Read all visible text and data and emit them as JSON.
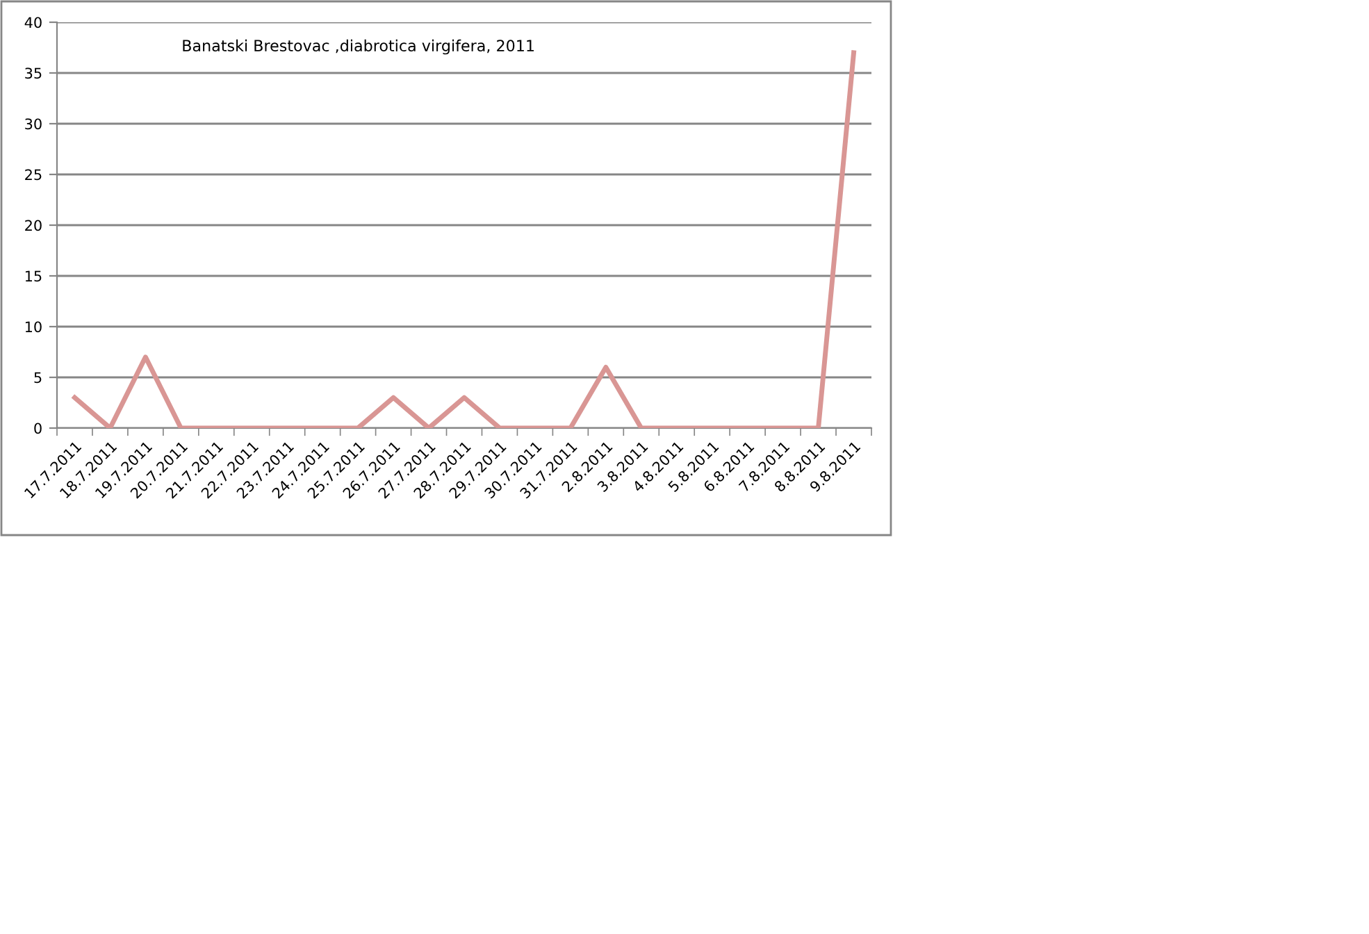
{
  "chart_data": {
    "type": "line",
    "title": "Banatski Brestovac ,diabrotica virgifera, 2011",
    "categories": [
      "17.7.2011",
      "18.7.2011",
      "19.7.2011",
      "20.7.2011",
      "21.7.2011",
      "22.7.2011",
      "23.7.2011",
      "24.7.2011",
      "25.7.2011",
      "26.7.2011",
      "27.7.2011",
      "28.7.2011",
      "29.7.2011",
      "30.7.2011",
      "31.7.2011",
      "2.8.2011",
      "3.8.2011",
      "4.8.2011",
      "5.8.2011",
      "6.8.2011",
      "7.8.2011",
      "8.8.2011",
      "9.8.2011"
    ],
    "values": [
      3,
      0,
      7,
      0,
      0,
      0,
      0,
      0,
      0,
      3,
      0,
      3,
      0,
      0,
      0,
      6,
      0,
      0,
      0,
      0,
      0,
      0,
      37
    ],
    "color": "#d99694",
    "ylim": [
      0,
      40
    ],
    "yticks": [
      0,
      5,
      10,
      15,
      20,
      25,
      30,
      35,
      40
    ],
    "grid": "y",
    "legend": false,
    "marker": "none",
    "line_style": "solid"
  }
}
